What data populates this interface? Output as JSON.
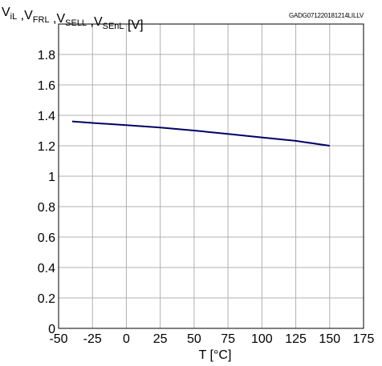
{
  "chart_data": {
    "type": "line",
    "figure_id": "GADG071220181214LILLV",
    "ylabel": {
      "parts": [
        {
          "main": "V",
          "sub": "iL"
        },
        {
          "main": " ,V",
          "sub": "FRL"
        },
        {
          "main": " ,V",
          "sub": "SELL"
        },
        {
          "main": " ,V",
          "sub": "SEnL"
        },
        {
          "main": " [V]",
          "sub": ""
        }
      ]
    },
    "xlabel": "T [°C]",
    "xlim": [
      -50,
      175
    ],
    "ylim": [
      0,
      2.0
    ],
    "x_ticks": [
      -50,
      -25,
      0,
      25,
      50,
      75,
      100,
      125,
      150,
      175
    ],
    "x_tick_labels": [
      "-50",
      "-25",
      "0",
      "25",
      "50",
      "75",
      "100",
      "125",
      "150",
      "175"
    ],
    "y_ticks": [
      0,
      0.2,
      0.4,
      0.6,
      0.8,
      1.0,
      1.2,
      1.4,
      1.6,
      1.8
    ],
    "y_tick_labels": [
      "0",
      "0.2",
      "0.4",
      "0.6",
      "0.8",
      "1",
      "1.2",
      "1.4",
      "1.6",
      "1.8"
    ],
    "grid": true,
    "series": [
      {
        "color": "#000066",
        "x": [
          -40,
          -25,
          0,
          25,
          50,
          75,
          100,
          125,
          150
        ],
        "y": [
          1.36,
          1.35,
          1.335,
          1.32,
          1.3,
          1.278,
          1.255,
          1.232,
          1.2
        ]
      }
    ]
  }
}
